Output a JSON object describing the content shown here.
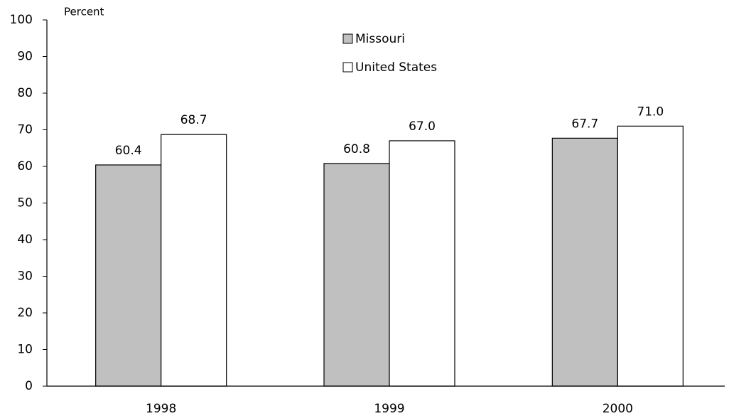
{
  "chart_data": {
    "type": "bar",
    "y_axis_label": "Percent",
    "categories": [
      "1998",
      "1999",
      "2000"
    ],
    "series": [
      {
        "name": "Missouri",
        "color": "#c0c0c0",
        "values": [
          60.4,
          60.8,
          67.7
        ],
        "value_labels": [
          "60.4",
          "60.8",
          "67.7"
        ]
      },
      {
        "name": "United States",
        "color": "#ffffff",
        "values": [
          68.7,
          67,
          71
        ],
        "value_labels": [
          "68.7",
          "67.0",
          "71.0"
        ]
      }
    ],
    "ylim": [
      0,
      100
    ],
    "yticks": [
      0,
      10,
      20,
      30,
      40,
      50,
      60,
      70,
      80,
      90,
      100
    ],
    "grid": false
  }
}
